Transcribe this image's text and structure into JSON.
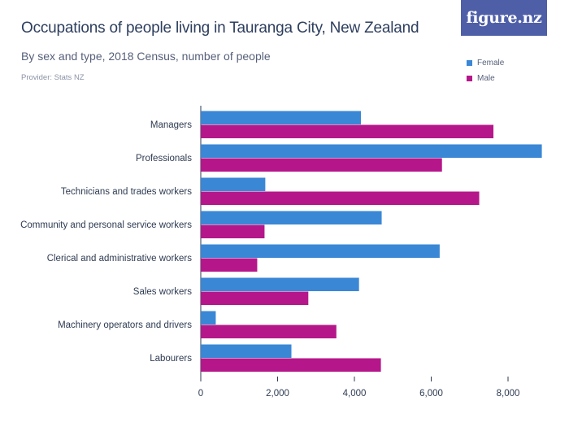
{
  "title": "Occupations of people living in Tauranga City, New Zealand",
  "subtitle": "By sex and type, 2018 Census, number of people",
  "provider": "Provider: Stats NZ",
  "logo": "figure.nz",
  "colors": {
    "female": "#3a87d6",
    "male": "#b5178a"
  },
  "chart_data": {
    "type": "bar",
    "orientation": "horizontal",
    "title": "Occupations of people living in Tauranga City, New Zealand",
    "subtitle": "By sex and type, 2018 Census, number of people",
    "categories": [
      "Managers",
      "Professionals",
      "Technicians and trades workers",
      "Community and personal service workers",
      "Clerical and administrative workers",
      "Sales workers",
      "Machinery operators and drivers",
      "Labourers"
    ],
    "series": [
      {
        "name": "Female",
        "values": [
          4170,
          8880,
          1680,
          4710,
          6220,
          4120,
          390,
          2360
        ]
      },
      {
        "name": "Male",
        "values": [
          7620,
          6280,
          7250,
          1660,
          1470,
          2800,
          3530,
          4690
        ]
      }
    ],
    "xlim": [
      0,
      9000
    ],
    "xticks": [
      0,
      2000,
      4000,
      6000,
      8000
    ],
    "xtick_labels": [
      "0",
      "2,000",
      "4,000",
      "6,000",
      "8,000"
    ],
    "grid": false,
    "legend_position": "top-right"
  }
}
